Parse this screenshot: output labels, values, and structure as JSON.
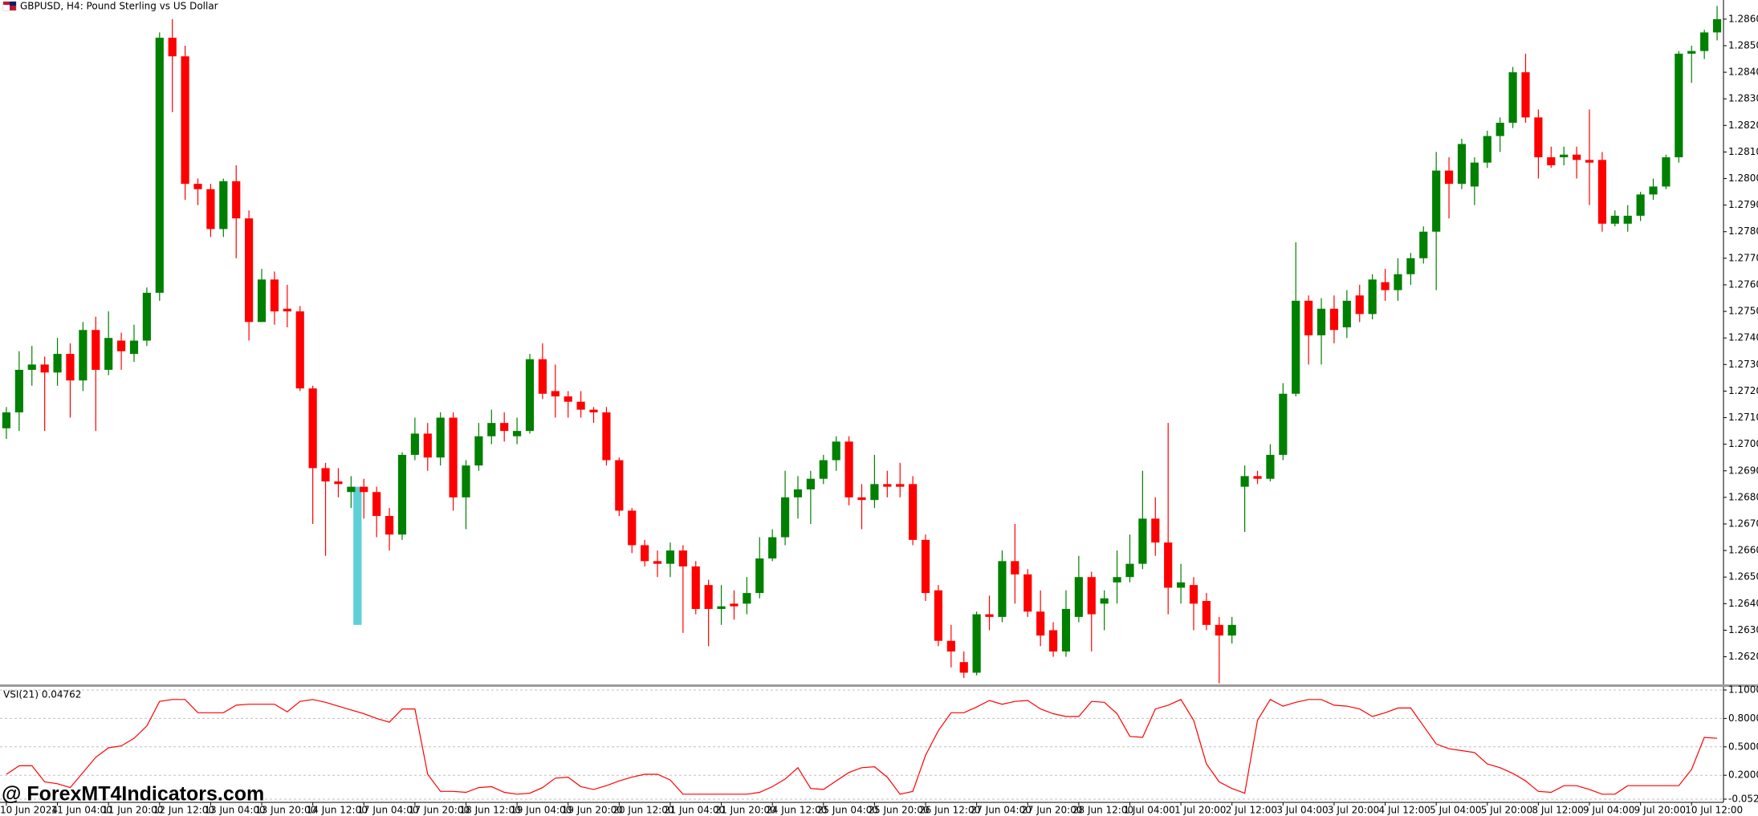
{
  "title": "GBPUSD, H4:  Pound Sterling vs US Dollar",
  "watermark": "@ ForexMT4Indicators.com",
  "chart_data": [
    {
      "type": "candlestick",
      "up_color": "#008000",
      "down_color": "#ff0000",
      "categories": [
        "10 Jun 2024",
        null,
        null,
        null,
        "11 Jun 04:00",
        null,
        null,
        null,
        "11 Jun 20:00",
        null,
        null,
        null,
        "12 Jun 12:00",
        null,
        null,
        null,
        "13 Jun 04:00",
        null,
        null,
        null,
        "13 Jun 20:00",
        null,
        null,
        null,
        "14 Jun 12:00",
        null,
        null,
        null,
        "17 Jun 04:00",
        null,
        null,
        null,
        "17 Jun 20:00",
        null,
        null,
        null,
        "18 Jun 12:00",
        null,
        null,
        null,
        "19 Jun 04:00",
        null,
        null,
        null,
        "19 Jun 20:00",
        null,
        null,
        null,
        "20 Jun 12:00",
        null,
        null,
        null,
        "21 Jun 04:00",
        null,
        null,
        null,
        "21 Jun 20:00",
        null,
        null,
        null,
        "24 Jun 12:00",
        null,
        null,
        null,
        "25 Jun 04:00",
        null,
        null,
        null,
        "25 Jun 20:00",
        null,
        null,
        null,
        "26 Jun 12:00",
        null,
        null,
        null,
        "27 Jun 04:00",
        null,
        null,
        null,
        "27 Jun 20:00",
        null,
        null,
        null,
        "28 Jun 12:00",
        null,
        null,
        null,
        "1 Jul 04:00",
        null,
        null,
        null,
        "1 Jul 20:00",
        null,
        null,
        null,
        "2 Jul 12:00",
        null,
        null,
        null,
        "3 Jul 04:00",
        null,
        null,
        null,
        "3 Jul 20:00",
        null,
        null,
        null,
        "4 Jul 12:00",
        null,
        null,
        null,
        "5 Jul 04:00",
        null,
        null,
        null,
        "5 Jul 20:00",
        null,
        null,
        null,
        "8 Jul 12:00",
        null,
        null,
        null,
        "9 Jul 04:00",
        null,
        null,
        null,
        "9 Jul 20:00",
        null,
        null,
        null,
        "10 Jul 12:00",
        null,
        null
      ],
      "open": [
        1.2706,
        1.2712,
        1.2728,
        1.273,
        1.2727,
        1.2734,
        1.2724,
        1.2743,
        1.2728,
        1.2739,
        1.2734,
        1.2739,
        1.2757,
        1.2853,
        1.2846,
        1.2798,
        1.2796,
        1.2781,
        1.2799,
        1.2785,
        1.2746,
        1.2762,
        1.2751,
        1.275,
        1.2721,
        1.2691,
        1.2686,
        1.2682,
        1.2684,
        1.2682,
        1.2673,
        1.2666,
        1.2696,
        1.2704,
        1.2695,
        1.271,
        1.268,
        1.2692,
        1.2703,
        1.2708,
        1.2703,
        1.2705,
        1.2732,
        1.272,
        1.2718,
        1.2716,
        1.2713,
        1.2712,
        1.2694,
        1.2675,
        1.2662,
        1.2656,
        1.2655,
        1.266,
        1.2654,
        1.2647,
        1.2638,
        1.264,
        1.264,
        1.2644,
        1.2657,
        1.2665,
        1.268,
        1.2683,
        1.2687,
        1.2694,
        1.2701,
        1.268,
        1.2679,
        1.2685,
        1.2685,
        1.2685,
        1.2664,
        1.2645,
        1.2626,
        1.2618,
        1.2614,
        1.2636,
        1.2635,
        1.2656,
        1.2651,
        1.2637,
        1.263,
        1.2622,
        1.2635,
        1.265,
        1.264,
        1.2648,
        1.265,
        1.2655,
        1.2672,
        1.2663,
        1.2646,
        1.2647,
        1.2641,
        1.2632,
        1.2628,
        1.2684,
        1.2688,
        1.2687,
        1.2696,
        1.2719,
        1.2754,
        1.2741,
        1.2751,
        1.2744,
        1.2756,
        1.2749,
        1.2761,
        1.2758,
        1.2764,
        1.277,
        1.278,
        1.2803,
        1.2798,
        1.2797,
        1.2806,
        1.2816,
        1.2821,
        1.284,
        1.2823,
        1.2808,
        1.2808,
        1.2809,
        1.2807,
        1.2807,
        1.2783,
        1.2783,
        1.2786,
        1.2794,
        1.2797,
        1.2808,
        1.2847,
        1.2848,
        1.2855
      ],
      "high": [
        1.2714,
        1.2735,
        1.2737,
        1.2733,
        1.274,
        1.2738,
        1.2746,
        1.2748,
        1.275,
        1.2742,
        1.2745,
        1.2759,
        1.2855,
        1.286,
        1.285,
        1.28,
        1.2798,
        1.28,
        1.2805,
        1.2788,
        1.2766,
        1.2765,
        1.276,
        1.2752,
        1.2722,
        1.2693,
        1.2691,
        1.2688,
        1.2687,
        1.2684,
        1.2676,
        1.2697,
        1.271,
        1.2708,
        1.2712,
        1.2712,
        1.2694,
        1.2708,
        1.2713,
        1.2712,
        1.271,
        1.2734,
        1.2738,
        1.273,
        1.272,
        1.272,
        1.2714,
        1.2714,
        1.2695,
        1.2676,
        1.2664,
        1.266,
        1.2663,
        1.2662,
        1.2656,
        1.2649,
        1.2647,
        1.2645,
        1.265,
        1.2665,
        1.2668,
        1.269,
        1.2688,
        1.269,
        1.2696,
        1.2703,
        1.2703,
        1.2685,
        1.2696,
        1.269,
        1.2693,
        1.2688,
        1.2666,
        1.2647,
        1.2632,
        1.2622,
        1.2637,
        1.2643,
        1.266,
        1.267,
        1.2653,
        1.2645,
        1.2633,
        1.2645,
        1.2658,
        1.2652,
        1.2645,
        1.266,
        1.2666,
        1.269,
        1.268,
        1.2708,
        1.2655,
        1.265,
        1.2644,
        1.2635,
        1.2635,
        1.2692,
        1.269,
        1.27,
        1.2723,
        1.2776,
        1.2756,
        1.2755,
        1.2756,
        1.2758,
        1.276,
        1.2764,
        1.2766,
        1.277,
        1.2772,
        1.2782,
        1.281,
        1.2808,
        1.2815,
        1.2808,
        1.2818,
        1.2823,
        1.2842,
        1.2847,
        1.2826,
        1.2812,
        1.2812,
        1.2812,
        1.2826,
        1.281,
        1.2788,
        1.279,
        1.2795,
        1.28,
        1.2809,
        1.2848,
        1.285,
        1.2856,
        1.2865
      ],
      "low": [
        1.2702,
        1.2705,
        1.2722,
        1.2705,
        1.2722,
        1.271,
        1.272,
        1.2705,
        1.2726,
        1.2728,
        1.2731,
        1.2737,
        1.2754,
        1.2825,
        1.2792,
        1.279,
        1.2778,
        1.2778,
        1.277,
        1.2739,
        1.2746,
        1.2745,
        1.2744,
        1.272,
        1.267,
        1.2658,
        1.268,
        1.2676,
        1.2672,
        1.2665,
        1.266,
        1.2664,
        1.2694,
        1.269,
        1.2692,
        1.2675,
        1.2668,
        1.269,
        1.27,
        1.2701,
        1.27,
        1.2704,
        1.2717,
        1.271,
        1.271,
        1.271,
        1.2708,
        1.2692,
        1.2673,
        1.2659,
        1.2654,
        1.265,
        1.265,
        1.2629,
        1.2636,
        1.2624,
        1.2632,
        1.2634,
        1.2636,
        1.2642,
        1.2656,
        1.2662,
        1.2672,
        1.267,
        1.2685,
        1.269,
        1.2677,
        1.2668,
        1.2676,
        1.268,
        1.268,
        1.2662,
        1.2641,
        1.2624,
        1.2616,
        1.2612,
        1.2613,
        1.263,
        1.2633,
        1.264,
        1.2635,
        1.2624,
        1.262,
        1.262,
        1.2633,
        1.2622,
        1.263,
        1.264,
        1.2648,
        1.2653,
        1.2658,
        1.2636,
        1.264,
        1.263,
        1.263,
        1.261,
        1.2625,
        1.2667,
        1.2685,
        1.2686,
        1.2694,
        1.2718,
        1.273,
        1.273,
        1.2738,
        1.274,
        1.2746,
        1.2747,
        1.2754,
        1.2754,
        1.276,
        1.2768,
        1.2758,
        1.2785,
        1.2796,
        1.279,
        1.2804,
        1.281,
        1.2819,
        1.2821,
        1.28,
        1.2804,
        1.2805,
        1.28,
        1.279,
        1.278,
        1.2782,
        1.278,
        1.2784,
        1.2792,
        1.2796,
        1.2806,
        1.2836,
        1.2845,
        1.2852
      ],
      "close": [
        1.2712,
        1.2728,
        1.273,
        1.2727,
        1.2734,
        1.2724,
        1.2743,
        1.2728,
        1.274,
        1.2735,
        1.2739,
        1.2757,
        1.2853,
        1.2846,
        1.2798,
        1.2796,
        1.2781,
        1.2799,
        1.2785,
        1.2746,
        1.2762,
        1.275,
        1.275,
        1.2721,
        1.2691,
        1.2686,
        1.2685,
        1.2684,
        1.2682,
        1.2673,
        1.2666,
        1.2696,
        1.2704,
        1.2695,
        1.271,
        1.268,
        1.2692,
        1.2703,
        1.2708,
        1.2705,
        1.2705,
        1.2732,
        1.2719,
        1.2718,
        1.2716,
        1.2713,
        1.2712,
        1.2694,
        1.2675,
        1.2662,
        1.2656,
        1.2655,
        1.266,
        1.2654,
        1.2638,
        1.2638,
        1.2639,
        1.2639,
        1.2644,
        1.2657,
        1.2665,
        1.268,
        1.2683,
        1.2687,
        1.2694,
        1.2701,
        1.268,
        1.2679,
        1.2685,
        1.2684,
        1.2684,
        1.2664,
        1.2644,
        1.2626,
        1.2622,
        1.2614,
        1.2636,
        1.2635,
        1.2656,
        1.2651,
        1.2637,
        1.2628,
        1.2622,
        1.2638,
        1.265,
        1.2636,
        1.2642,
        1.265,
        1.2655,
        1.2672,
        1.2663,
        1.2646,
        1.2648,
        1.264,
        1.2632,
        1.2628,
        1.2632,
        1.2688,
        1.2687,
        1.2696,
        1.2719,
        1.2754,
        1.2741,
        1.2751,
        1.2743,
        1.2754,
        1.2749,
        1.2762,
        1.2758,
        1.2764,
        1.277,
        1.278,
        1.2803,
        1.2798,
        1.2813,
        1.2806,
        1.2816,
        1.2821,
        1.284,
        1.2823,
        1.2808,
        1.2805,
        1.2809,
        1.2807,
        1.2806,
        1.2783,
        1.2786,
        1.2786,
        1.2794,
        1.2797,
        1.2808,
        1.2847,
        1.2848,
        1.2855,
        1.286
      ],
      "highlight": {
        "low": 1.2632,
        "high": 1.2684,
        "color": "#5bd0d6"
      },
      "ylim": [
        1.26099,
        1.28672
      ],
      "yticks": [
        {
          "value": 1.262,
          "label": "1.26200"
        },
        {
          "value": 1.263,
          "label": "1.26300"
        },
        {
          "value": 1.264,
          "label": "1.26400"
        },
        {
          "value": 1.265,
          "label": "1.26500"
        },
        {
          "value": 1.266,
          "label": "1.26600"
        },
        {
          "value": 1.267,
          "label": "1.26700"
        },
        {
          "value": 1.268,
          "label": "1.26800"
        },
        {
          "value": 1.269,
          "label": "1.26900"
        },
        {
          "value": 1.27,
          "label": "1.27000"
        },
        {
          "value": 1.271,
          "label": "1.27100"
        },
        {
          "value": 1.272,
          "label": "1.27200"
        },
        {
          "value": 1.273,
          "label": "1.27300"
        },
        {
          "value": 1.274,
          "label": "1.27400"
        },
        {
          "value": 1.275,
          "label": "1.27500"
        },
        {
          "value": 1.276,
          "label": "1.27600"
        },
        {
          "value": 1.277,
          "label": "1.27700"
        },
        {
          "value": 1.278,
          "label": "1.27800"
        },
        {
          "value": 1.279,
          "label": "1.27900"
        },
        {
          "value": 1.28,
          "label": "1.28000"
        },
        {
          "value": 1.281,
          "label": "1.28100"
        },
        {
          "value": 1.282,
          "label": "1.28200"
        },
        {
          "value": 1.283,
          "label": "1.28300"
        },
        {
          "value": 1.284,
          "label": "1.28400"
        },
        {
          "value": 1.285,
          "label": "1.28500"
        },
        {
          "value": 1.286,
          "label": "1.28600"
        }
      ],
      "grid": false
    },
    {
      "type": "line",
      "title": "VSI(21) 0.04762",
      "color": "#ff0000",
      "values": [
        0.21,
        0.3,
        0.3,
        0.13,
        0.11,
        0.07,
        0.23,
        0.39,
        0.49,
        0.51,
        0.59,
        0.72,
        0.98,
        1,
        1,
        0.86,
        0.86,
        0.86,
        0.94,
        0.95,
        0.95,
        0.95,
        0.87,
        0.98,
        1,
        0.97,
        0.93,
        0.89,
        0.85,
        0.8,
        0.76,
        0.9,
        0.9,
        0.21,
        0.03,
        0.03,
        0.02,
        0.07,
        0.08,
        0.02,
        0,
        0.01,
        0.07,
        0.17,
        0.18,
        0.08,
        0.05,
        0.09,
        0.14,
        0.18,
        0.21,
        0.21,
        0.15,
        0,
        0,
        0,
        0,
        0,
        0,
        0.02,
        0.08,
        0.16,
        0.28,
        0.06,
        0.05,
        0.14,
        0.23,
        0.28,
        0.29,
        0.18,
        0,
        0.03,
        0.41,
        0.67,
        0.86,
        0.86,
        0.92,
        0.99,
        0.95,
        0.98,
        0.99,
        0.9,
        0.85,
        0.82,
        0.82,
        0.98,
        0.97,
        0.85,
        0.61,
        0.6,
        0.9,
        0.94,
        1,
        0.78,
        0.32,
        0.13,
        0.06,
        0.01,
        0.78,
        1,
        0.93,
        0.97,
        1,
        1,
        0.94,
        0.93,
        0.9,
        0.82,
        0.86,
        0.91,
        0.91,
        0.72,
        0.53,
        0.48,
        0.46,
        0.44,
        0.32,
        0.28,
        0.22,
        0.14,
        0.03,
        0.02,
        0.09,
        0.09,
        0.05,
        0,
        0,
        0.09,
        0.09,
        0.09,
        0.09,
        0.09,
        0.26,
        0.6,
        0.59
      ],
      "ylim": [
        -0.05238,
        1.1
      ],
      "yticks": [
        {
          "value": 1.1,
          "label": "1.10000"
        },
        {
          "value": 0.8,
          "label": "0.80000"
        },
        {
          "value": 0.5,
          "label": "0.50000"
        },
        {
          "value": 0.2,
          "label": "0.20000"
        },
        {
          "value": -0.05238,
          "label": "-0.05238"
        }
      ],
      "grid": true
    }
  ]
}
